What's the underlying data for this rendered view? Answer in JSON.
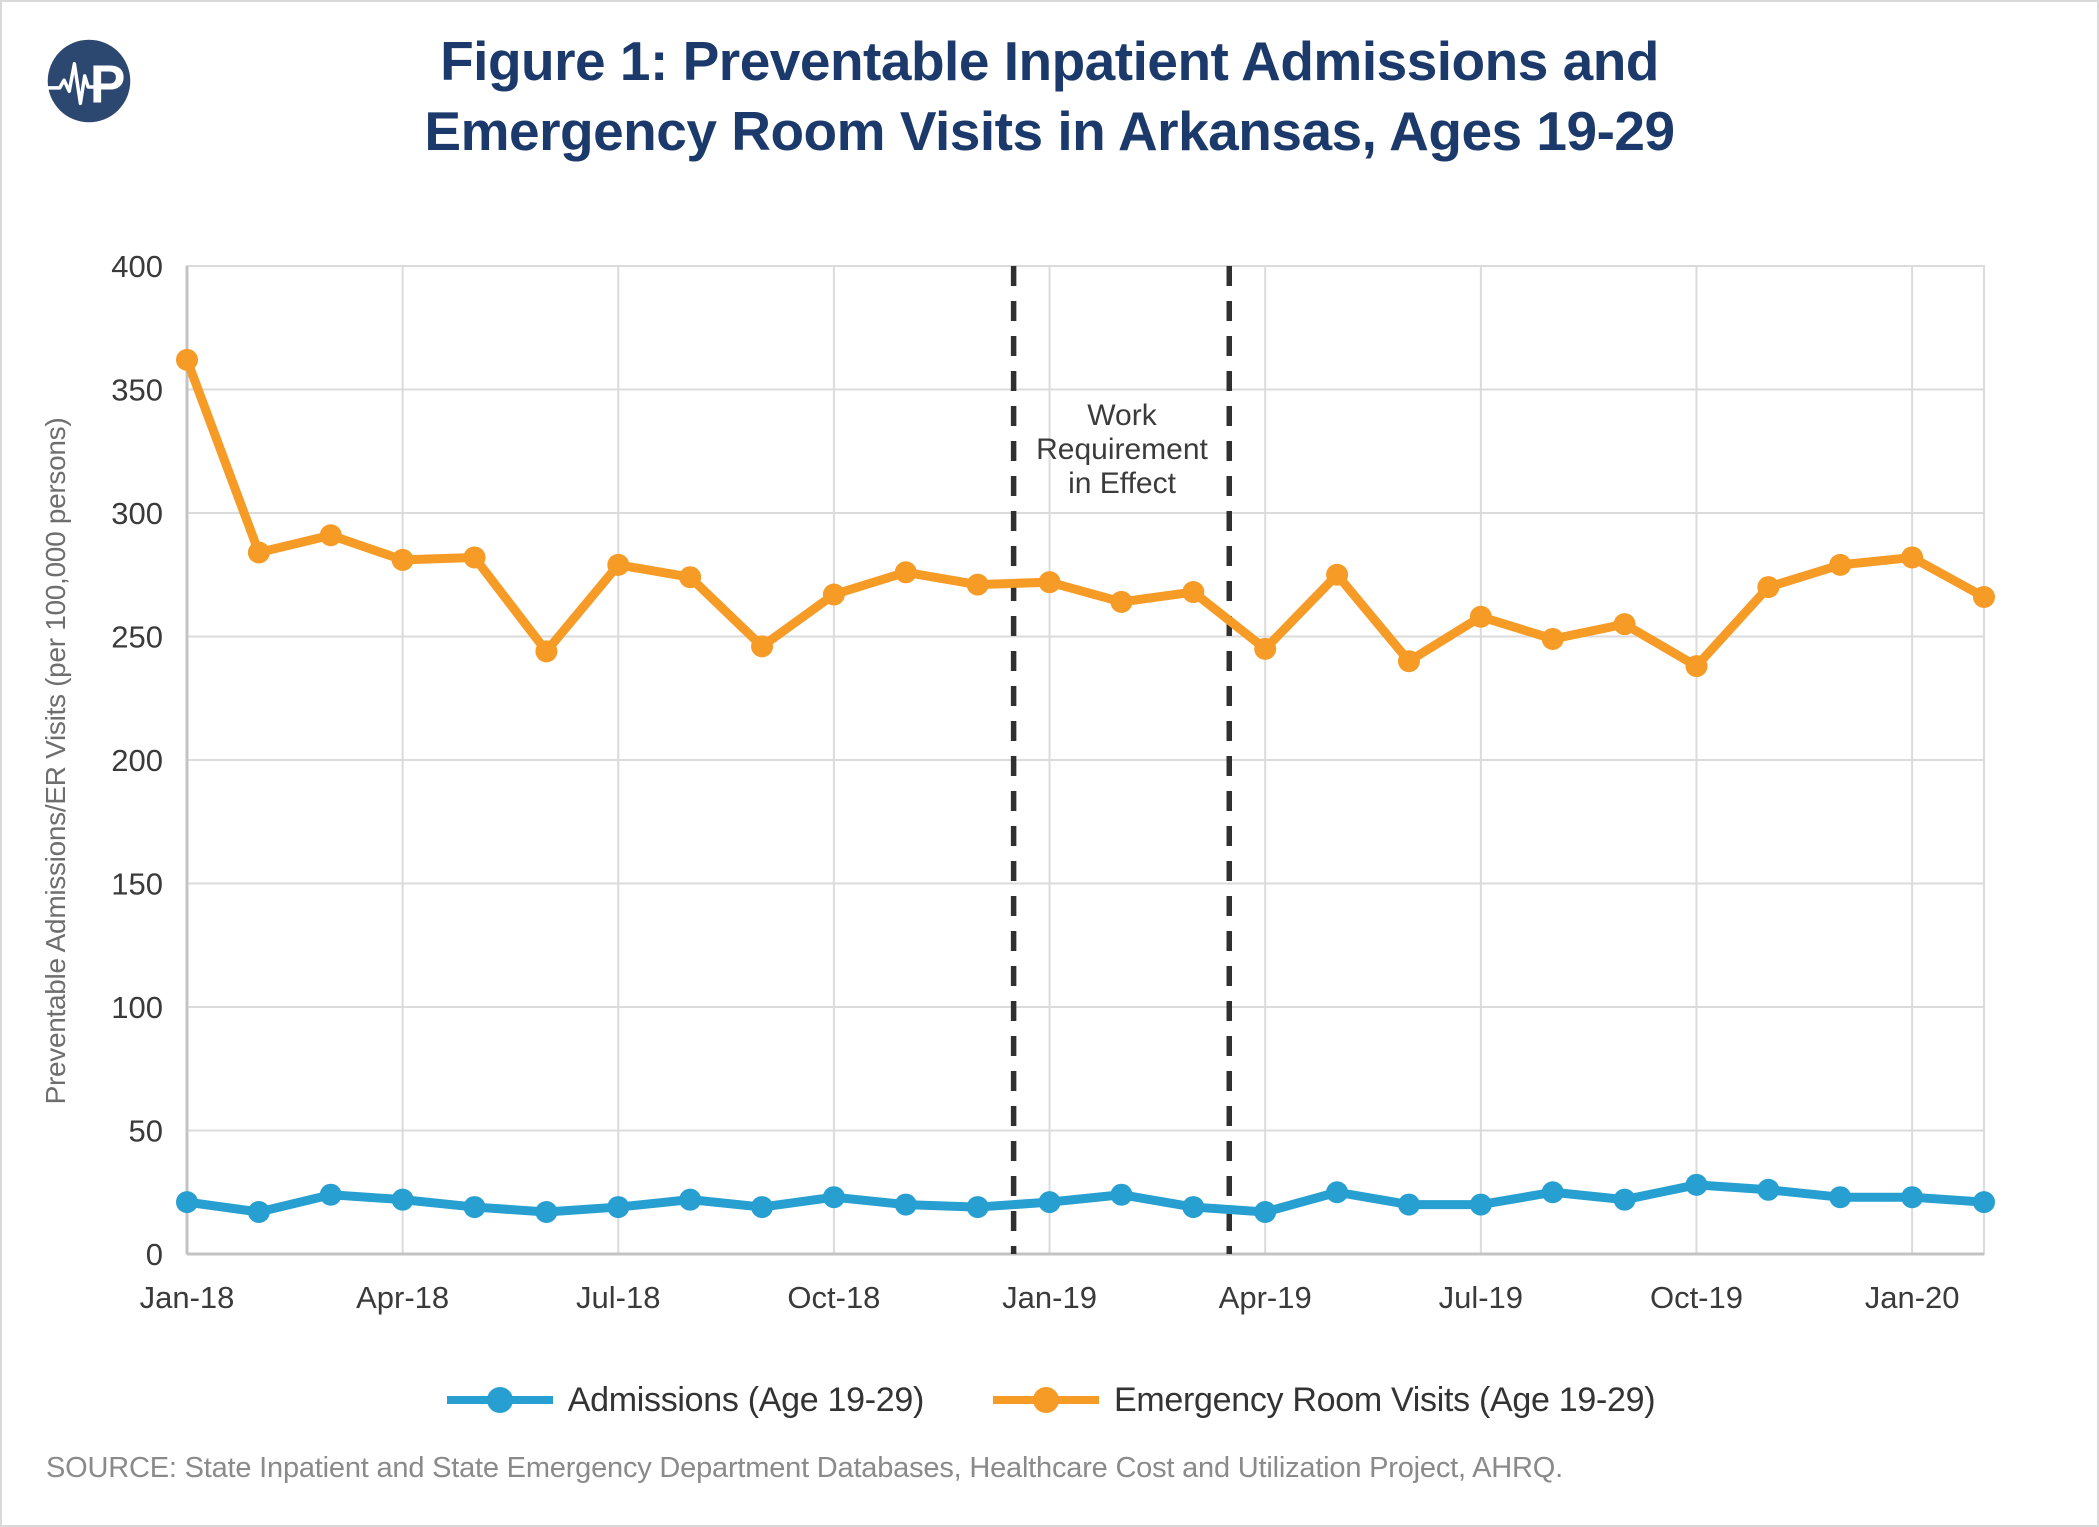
{
  "header": {
    "logo_letter": "P",
    "title_line1": "Figure 1: Preventable Inpatient Admissions and",
    "title_line2": "Emergency Room Visits in Arkansas, Ages 19-29"
  },
  "chart_data": {
    "type": "line",
    "title": "Figure 1: Preventable Inpatient Admissions and Emergency Room Visits in Arkansas, Ages 19-29",
    "xlabel": "",
    "ylabel": "Preventable Admissions/ER Visits (per 100,000 persons)",
    "ylim": [
      0,
      400
    ],
    "yticks": [
      0,
      50,
      100,
      150,
      200,
      250,
      300,
      350,
      400
    ],
    "grid": true,
    "legend_position": "bottom",
    "categories": [
      "Jan-18",
      "Feb-18",
      "Mar-18",
      "Apr-18",
      "May-18",
      "Jun-18",
      "Jul-18",
      "Aug-18",
      "Sep-18",
      "Oct-18",
      "Nov-18",
      "Dec-18",
      "Jan-19",
      "Feb-19",
      "Mar-19",
      "Apr-19",
      "May-19",
      "Jun-19",
      "Jul-19",
      "Aug-19",
      "Sep-19",
      "Oct-19",
      "Nov-19",
      "Dec-19",
      "Jan-20",
      "Feb-20"
    ],
    "xtick_labels": [
      "Jan-18",
      "Apr-18",
      "Jul-18",
      "Oct-18",
      "Jan-19",
      "Apr-19",
      "Jul-19",
      "Oct-19",
      "Jan-20"
    ],
    "xtick_indices": [
      0,
      3,
      6,
      9,
      12,
      15,
      18,
      21,
      24
    ],
    "series": [
      {
        "name": "Admissions (Age 19-29)",
        "color": "#279FD0",
        "values": [
          21,
          17,
          24,
          22,
          19,
          17,
          19,
          22,
          19,
          23,
          20,
          19,
          21,
          24,
          19,
          17,
          25,
          20,
          20,
          25,
          22,
          28,
          26,
          23,
          23,
          21
        ]
      },
      {
        "name": "Emergency Room Visits (Age 19-29)",
        "color": "#F59B26",
        "values": [
          362,
          284,
          291,
          281,
          282,
          244,
          279,
          274,
          246,
          267,
          276,
          271,
          272,
          264,
          268,
          245,
          275,
          240,
          258,
          249,
          255,
          238,
          270,
          279,
          282,
          266
        ]
      }
    ],
    "annotation": {
      "lines": [
        "Work",
        "Requirement",
        "in Effect"
      ],
      "text": "Work Requirement in Effect",
      "span_start_index": 11.5,
      "span_end_index": 14.5
    }
  },
  "footer": {
    "source": "SOURCE: State Inpatient and State Emergency Department Databases, Healthcare Cost and Utilization Project, AHRQ."
  },
  "colors": {
    "title": "#1B3A6B",
    "logo_bg": "#2C4770",
    "logo_fg": "#FFFFFF",
    "grid": "#DBDBDB",
    "axis": "#C3C3C3",
    "tick_label": "#3A3A3A",
    "axis_title": "#6E6E6E",
    "annotation_text": "#3B3B3B",
    "dashed_line": "#303030",
    "source_text": "#8A8A8A"
  }
}
